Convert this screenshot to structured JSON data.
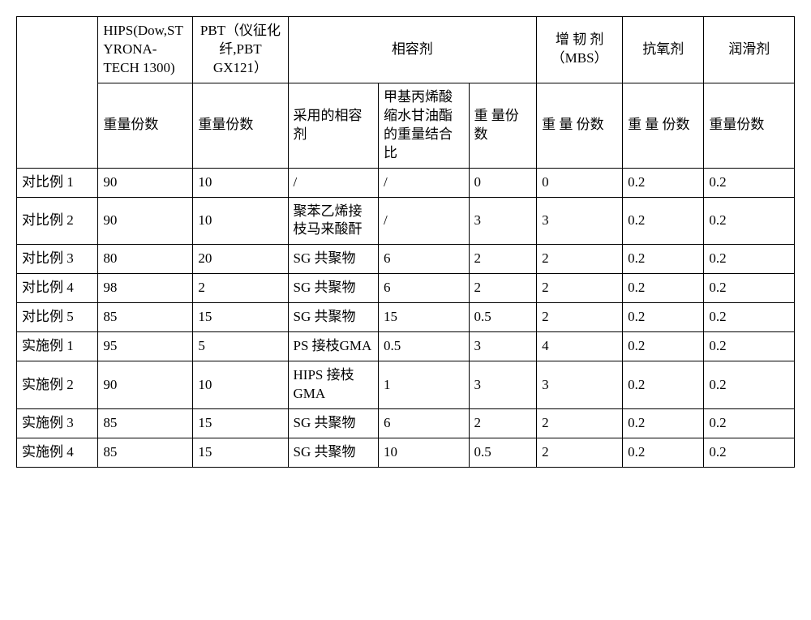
{
  "header": {
    "row1": {
      "blank": "",
      "hips": "HIPS(Dow,STYRONA-TECH 1300)",
      "pbt": "PBT（仪征化纤,PBT GX121）",
      "compat": "相容剂",
      "toughener": "增 韧 剂（MBS）",
      "antiox": "抗氧剂",
      "lubricant": "润滑剂"
    },
    "row2": {
      "h1": "重量份数",
      "h2": "重量份数",
      "h3": "采用的相容剂",
      "h4": "甲基丙烯酸缩水甘油酯的重量结合比",
      "h5": "重 量份数",
      "h6": "重 量 份数",
      "h7": "重 量 份数",
      "h8": "重量份数"
    }
  },
  "rows": [
    {
      "label": "对比例 1",
      "c1": "90",
      "c2": "10",
      "c3": "/",
      "c4": "/",
      "c5": "0",
      "c6": "0",
      "c7": "0.2",
      "c8": "0.2"
    },
    {
      "label": "对比例 2",
      "c1": "90",
      "c2": "10",
      "c3": "聚苯乙烯接枝马来酸酐",
      "c4": "/",
      "c5": "3",
      "c6": "3",
      "c7": "0.2",
      "c8": "0.2"
    },
    {
      "label": "对比例 3",
      "c1": "80",
      "c2": "20",
      "c3": "SG 共聚物",
      "c4": "6",
      "c5": "2",
      "c6": "2",
      "c7": "0.2",
      "c8": "0.2"
    },
    {
      "label": "对比例 4",
      "c1": "98",
      "c2": "2",
      "c3": "SG 共聚物",
      "c4": "6",
      "c5": "2",
      "c6": "2",
      "c7": "0.2",
      "c8": "0.2"
    },
    {
      "label": "对比例 5",
      "c1": "85",
      "c2": "15",
      "c3": "SG 共聚物",
      "c4": "15",
      "c5": "0.5",
      "c6": "2",
      "c7": "0.2",
      "c8": "0.2"
    },
    {
      "label": "实施例 1",
      "c1": "95",
      "c2": "5",
      "c3": "PS 接枝GMA",
      "c4": "0.5",
      "c5": "3",
      "c6": "4",
      "c7": "0.2",
      "c8": "0.2"
    },
    {
      "label": "实施例 2",
      "c1": "90",
      "c2": "10",
      "c3": "HIPS 接枝 GMA",
      "c4": "1",
      "c5": "3",
      "c6": "3",
      "c7": "0.2",
      "c8": "0.2"
    },
    {
      "label": "实施例 3",
      "c1": "85",
      "c2": "15",
      "c3": "SG 共聚物",
      "c4": "6",
      "c5": "2",
      "c6": "2",
      "c7": "0.2",
      "c8": "0.2"
    },
    {
      "label": "实施例 4",
      "c1": "85",
      "c2": "15",
      "c3": "SG 共聚物",
      "c4": "10",
      "c5": "0.5",
      "c6": "2",
      "c7": "0.2",
      "c8": "0.2"
    }
  ],
  "style": {
    "border_color": "#000000",
    "background_color": "#ffffff",
    "font_size_pt": 13
  }
}
